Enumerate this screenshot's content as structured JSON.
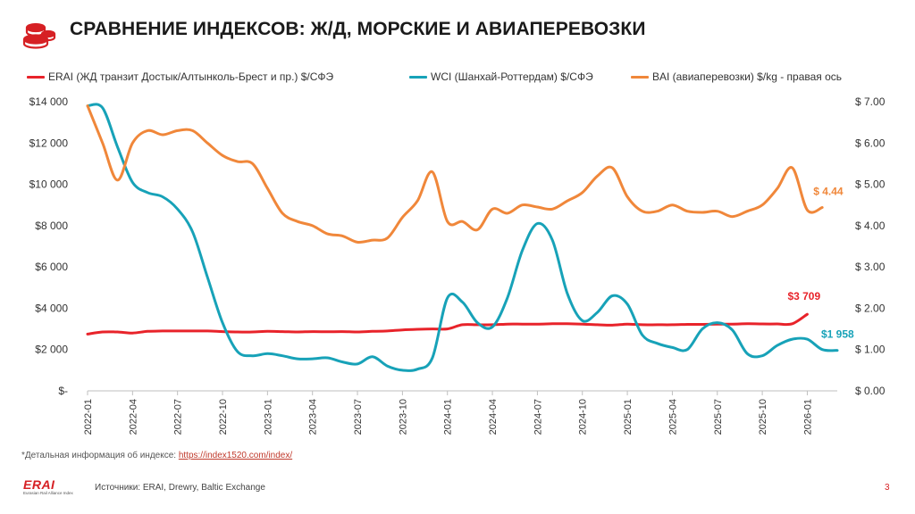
{
  "title": "СРАВНЕНИЕ ИНДЕКСОВ:  Ж/Д, МОРСКИЕ И АВИАПЕРЕВОЗКИ",
  "footnote": {
    "prefix": "*Детальная информация об индексе: ",
    "link": "https://index1520.com/index/"
  },
  "brand": {
    "name": "ERAI",
    "subtitle": "Eurasian Rail Alliance Index"
  },
  "sources": "Источники: ERAI, Drewry, Baltic Exchange",
  "page_number": "3",
  "colors": {
    "erai": "#e8232a",
    "wci": "#17a2b8",
    "bai": "#f0873a",
    "logo": "#d62024"
  },
  "icons": {
    "logo": "coin-stack-icon"
  },
  "chart_data": {
    "type": "line",
    "legend_position": "top",
    "grid": false,
    "x_ticks": [
      "2022-01",
      "2022-04",
      "2022-07",
      "2022-10",
      "2023-01",
      "2023-04",
      "2023-07",
      "2023-10",
      "2024-01",
      "2024-04",
      "2024-07",
      "2024-10",
      "2025-01",
      "2025-04",
      "2025-07",
      "2025-10",
      "2026-01"
    ],
    "x_range": [
      "2022-01",
      "2026-03"
    ],
    "y_left": {
      "range": [
        0,
        14000
      ],
      "ticks": [
        "$-",
        "$2 000",
        "$4 000",
        "$6 000",
        "$8 000",
        "$10 000",
        "$12 000",
        "$14 000"
      ]
    },
    "y_right": {
      "range": [
        0,
        7
      ],
      "ticks": [
        "$ 0.00",
        "$ 1.00",
        "$ 2.00",
        "$ 3.00",
        "$ 4.00",
        "$ 5.00",
        "$ 6.00",
        "$ 7.00"
      ]
    },
    "series": [
      {
        "name": "ERAI (ЖД транзит Достык/Алтынколь-Брест и пр.)  $/СФЭ",
        "axis": "left",
        "color_key": "erai",
        "points": [
          [
            "2022-01",
            2750
          ],
          [
            "2022-02",
            2850
          ],
          [
            "2022-03",
            2850
          ],
          [
            "2022-04",
            2800
          ],
          [
            "2022-05",
            2880
          ],
          [
            "2022-06",
            2900
          ],
          [
            "2022-07",
            2900
          ],
          [
            "2022-08",
            2900
          ],
          [
            "2022-09",
            2900
          ],
          [
            "2022-10",
            2870
          ],
          [
            "2022-11",
            2850
          ],
          [
            "2022-12",
            2850
          ],
          [
            "2023-01",
            2880
          ],
          [
            "2023-02",
            2870
          ],
          [
            "2023-03",
            2850
          ],
          [
            "2023-04",
            2870
          ],
          [
            "2023-05",
            2860
          ],
          [
            "2023-06",
            2870
          ],
          [
            "2023-07",
            2850
          ],
          [
            "2023-08",
            2880
          ],
          [
            "2023-09",
            2900
          ],
          [
            "2023-10",
            2950
          ],
          [
            "2023-11",
            2980
          ],
          [
            "2023-12",
            3000
          ],
          [
            "2024-01",
            3000
          ],
          [
            "2024-02",
            3200
          ],
          [
            "2024-03",
            3200
          ],
          [
            "2024-04",
            3200
          ],
          [
            "2024-05",
            3230
          ],
          [
            "2024-06",
            3230
          ],
          [
            "2024-07",
            3230
          ],
          [
            "2024-08",
            3250
          ],
          [
            "2024-09",
            3250
          ],
          [
            "2024-10",
            3230
          ],
          [
            "2024-11",
            3200
          ],
          [
            "2024-12",
            3180
          ],
          [
            "2025-01",
            3230
          ],
          [
            "2025-02",
            3200
          ],
          [
            "2025-03",
            3200
          ],
          [
            "2025-04",
            3200
          ],
          [
            "2025-05",
            3220
          ],
          [
            "2025-06",
            3220
          ],
          [
            "2025-07",
            3230
          ],
          [
            "2025-08",
            3230
          ],
          [
            "2025-09",
            3250
          ],
          [
            "2025-10",
            3240
          ],
          [
            "2025-11",
            3240
          ],
          [
            "2025-12",
            3250
          ],
          [
            "2026-01",
            3709
          ]
        ],
        "end_label": "$3 709"
      },
      {
        "name": "WCI (Шанхай-Роттердам) $/СФЭ",
        "axis": "left",
        "color_key": "wci",
        "points": [
          [
            "2022-01",
            13800
          ],
          [
            "2022-02",
            13700
          ],
          [
            "2022-03",
            11800
          ],
          [
            "2022-04",
            10100
          ],
          [
            "2022-05",
            9600
          ],
          [
            "2022-06",
            9400
          ],
          [
            "2022-07",
            8800
          ],
          [
            "2022-08",
            7700
          ],
          [
            "2022-09",
            5500
          ],
          [
            "2022-10",
            3300
          ],
          [
            "2022-11",
            1900
          ],
          [
            "2022-12",
            1700
          ],
          [
            "2023-01",
            1800
          ],
          [
            "2023-02",
            1700
          ],
          [
            "2023-03",
            1550
          ],
          [
            "2023-04",
            1550
          ],
          [
            "2023-05",
            1600
          ],
          [
            "2023-06",
            1400
          ],
          [
            "2023-07",
            1300
          ],
          [
            "2023-08",
            1650
          ],
          [
            "2023-09",
            1200
          ],
          [
            "2023-10",
            1000
          ],
          [
            "2023-11",
            1050
          ],
          [
            "2023-12",
            1600
          ],
          [
            "2024-01",
            4500
          ],
          [
            "2024-02",
            4300
          ],
          [
            "2024-03",
            3300
          ],
          [
            "2024-04",
            3100
          ],
          [
            "2024-05",
            4500
          ],
          [
            "2024-06",
            6800
          ],
          [
            "2024-07",
            8100
          ],
          [
            "2024-08",
            7300
          ],
          [
            "2024-09",
            4700
          ],
          [
            "2024-10",
            3400
          ],
          [
            "2024-11",
            3800
          ],
          [
            "2024-12",
            4600
          ],
          [
            "2025-01",
            4200
          ],
          [
            "2025-02",
            2700
          ],
          [
            "2025-03",
            2300
          ],
          [
            "2025-04",
            2100
          ],
          [
            "2025-05",
            2000
          ],
          [
            "2025-06",
            3000
          ],
          [
            "2025-07",
            3300
          ],
          [
            "2025-08",
            2950
          ],
          [
            "2025-09",
            1800
          ],
          [
            "2025-10",
            1700
          ],
          [
            "2025-11",
            2200
          ],
          [
            "2025-12",
            2500
          ],
          [
            "2026-01",
            2500
          ],
          [
            "2026-02",
            2000
          ],
          [
            "2026-03",
            1958
          ]
        ],
        "end_label": "$1 958"
      },
      {
        "name": "BAI (авиаперевозки) $/kg - правая ось",
        "axis": "right",
        "color_key": "bai",
        "points": [
          [
            "2022-01",
            6.9
          ],
          [
            "2022-02",
            6.0
          ],
          [
            "2022-03",
            5.1
          ],
          [
            "2022-04",
            6.0
          ],
          [
            "2022-05",
            6.3
          ],
          [
            "2022-06",
            6.2
          ],
          [
            "2022-07",
            6.3
          ],
          [
            "2022-08",
            6.3
          ],
          [
            "2022-09",
            6.0
          ],
          [
            "2022-10",
            5.7
          ],
          [
            "2022-11",
            5.55
          ],
          [
            "2022-12",
            5.5
          ],
          [
            "2023-01",
            4.9
          ],
          [
            "2023-02",
            4.3
          ],
          [
            "2023-03",
            4.1
          ],
          [
            "2023-04",
            4.0
          ],
          [
            "2023-05",
            3.8
          ],
          [
            "2023-06",
            3.75
          ],
          [
            "2023-07",
            3.6
          ],
          [
            "2023-08",
            3.65
          ],
          [
            "2023-09",
            3.7
          ],
          [
            "2023-10",
            4.2
          ],
          [
            "2023-11",
            4.6
          ],
          [
            "2023-12",
            5.3
          ],
          [
            "2024-01",
            4.1
          ],
          [
            "2024-02",
            4.1
          ],
          [
            "2024-03",
            3.9
          ],
          [
            "2024-04",
            4.4
          ],
          [
            "2024-05",
            4.3
          ],
          [
            "2024-06",
            4.5
          ],
          [
            "2024-07",
            4.45
          ],
          [
            "2024-08",
            4.4
          ],
          [
            "2024-09",
            4.6
          ],
          [
            "2024-10",
            4.8
          ],
          [
            "2024-11",
            5.2
          ],
          [
            "2024-12",
            5.4
          ],
          [
            "2025-01",
            4.7
          ],
          [
            "2025-02",
            4.35
          ],
          [
            "2025-03",
            4.35
          ],
          [
            "2025-04",
            4.5
          ],
          [
            "2025-05",
            4.35
          ],
          [
            "2025-06",
            4.32
          ],
          [
            "2025-07",
            4.35
          ],
          [
            "2025-08",
            4.22
          ],
          [
            "2025-09",
            4.35
          ],
          [
            "2025-10",
            4.5
          ],
          [
            "2025-11",
            4.9
          ],
          [
            "2025-12",
            5.4
          ],
          [
            "2026-01",
            4.38
          ],
          [
            "2026-02",
            4.44
          ]
        ],
        "end_label": "$ 4.44"
      }
    ]
  }
}
